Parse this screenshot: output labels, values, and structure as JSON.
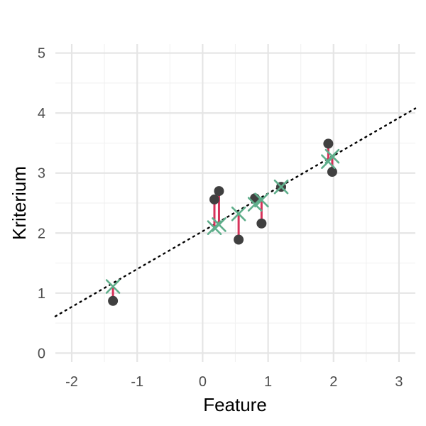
{
  "chart_data": {
    "type": "scatter",
    "title": "",
    "xlabel": "Feature",
    "ylabel": "Kriterium",
    "xlim": [
      -2.25,
      3.25
    ],
    "ylim": [
      -0.15,
      5.15
    ],
    "x_ticks": [
      -2,
      -1,
      0,
      1,
      2,
      3
    ],
    "y_ticks": [
      0,
      1,
      2,
      3,
      4,
      5
    ],
    "x_tick_labels": [
      "-2",
      "-1",
      "0",
      "1",
      "2",
      "3"
    ],
    "y_tick_labels": [
      "0",
      "1",
      "2",
      "3",
      "4",
      "5"
    ],
    "grid": true,
    "legend": "none",
    "regression_line": {
      "intercept": 2.03,
      "slope": 0.63,
      "style": "dotted",
      "color": "#000000"
    },
    "observed": {
      "marker": "circle",
      "color": "#404040",
      "points": [
        {
          "x": -1.37,
          "y": 0.87
        },
        {
          "x": 0.18,
          "y": 2.56
        },
        {
          "x": 0.25,
          "y": 2.7
        },
        {
          "x": 0.55,
          "y": 1.89
        },
        {
          "x": 0.8,
          "y": 2.58
        },
        {
          "x": 0.9,
          "y": 2.16
        },
        {
          "x": 1.2,
          "y": 2.77
        },
        {
          "x": 1.92,
          "y": 3.49
        },
        {
          "x": 1.98,
          "y": 3.02
        }
      ]
    },
    "predicted": {
      "marker": "x",
      "color": "#5fae8b",
      "points": [
        {
          "x": -1.37,
          "y": 1.11
        },
        {
          "x": 0.18,
          "y": 2.09
        },
        {
          "x": 0.25,
          "y": 2.14
        },
        {
          "x": 0.55,
          "y": 2.32
        },
        {
          "x": 0.8,
          "y": 2.48
        },
        {
          "x": 0.9,
          "y": 2.55
        },
        {
          "x": 1.2,
          "y": 2.77
        },
        {
          "x": 1.92,
          "y": 3.19
        },
        {
          "x": 1.98,
          "y": 3.28
        }
      ]
    },
    "residual_color": "#d6325a",
    "grid_major_color": "#e5e5e5",
    "grid_minor_color": "#f2f2f2"
  }
}
